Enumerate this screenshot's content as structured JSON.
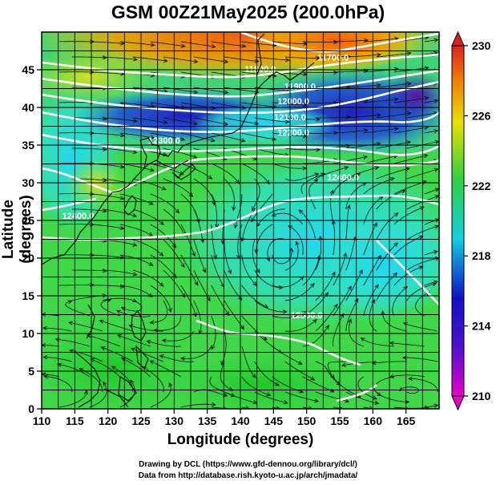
{
  "title": "GSM 00Z21May2025 (200.0hPa)",
  "xlabel": "Longitude (degrees)",
  "ylabel": "Latitude  (degrees)",
  "credits": {
    "line1": "Drawing by DCL (https://www.gfd-dennou.org/library/dcl/)",
    "line2": "Data from http://database.rish.kyoto-u.ac.jp/arch/jmadata/"
  },
  "chart_data": {
    "type": "heatmap",
    "x": {
      "range": [
        110,
        170
      ],
      "ticks": [
        110,
        115,
        120,
        125,
        130,
        135,
        140,
        145,
        150,
        155,
        160,
        165
      ]
    },
    "y": {
      "range": [
        0,
        50
      ],
      "ticks": [
        0,
        5,
        10,
        15,
        20,
        25,
        30,
        35,
        40,
        45
      ]
    },
    "grid": true,
    "colorbar": {
      "range": [
        210,
        230
      ],
      "ticks": [
        210,
        214,
        218,
        222,
        226,
        230
      ],
      "colors": [
        "#e800c8",
        "#1010c8",
        "#10d0e0",
        "#30d040",
        "#e8e000",
        "#f08000",
        "#e02020"
      ],
      "position": "right"
    },
    "contours": [
      {
        "label": "11700.0",
        "lon": 154,
        "lat": 46.2
      },
      {
        "label": "11800.0",
        "lon": 143,
        "lat": 44.7
      },
      {
        "label": "11900.0",
        "lon": 149,
        "lat": 42.4
      },
      {
        "label": "12000.0",
        "lon": 148,
        "lat": 40.4
      },
      {
        "label": "12100.0",
        "lon": 147.5,
        "lat": 38.3
      },
      {
        "label": "12200.0",
        "lon": 148,
        "lat": 36.3
      },
      {
        "label": "12300.0",
        "lon": 128.5,
        "lat": 35.2
      },
      {
        "label": "12400.0",
        "lon": 115.5,
        "lat": 25.2
      },
      {
        "label": "12400.0",
        "lon": 155.5,
        "lat": 30.3
      },
      {
        "label": "12500.0",
        "lon": 150,
        "lat": 12.0
      }
    ]
  }
}
